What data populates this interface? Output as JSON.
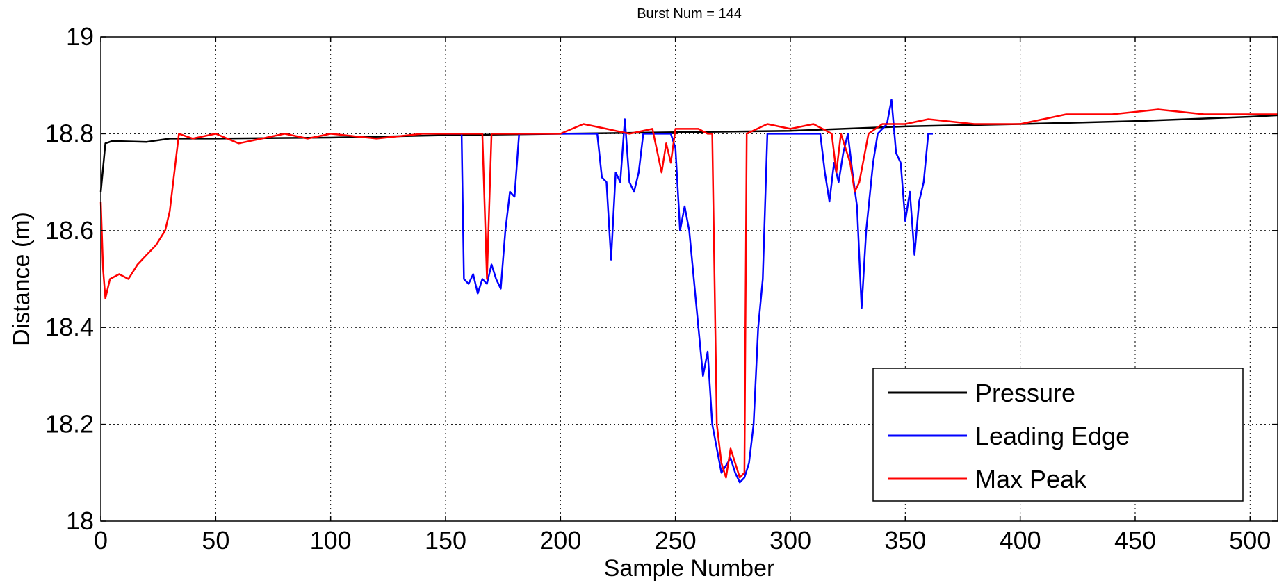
{
  "chart_data": {
    "type": "line",
    "title": "Burst Num = 144",
    "xlabel": "Sample Number",
    "ylabel": "Distance (m)",
    "xlim": [
      0,
      512
    ],
    "ylim": [
      18,
      19
    ],
    "xticks": [
      0,
      50,
      100,
      150,
      200,
      250,
      300,
      350,
      400,
      450,
      500
    ],
    "yticks": [
      18,
      18.2,
      18.4,
      18.6,
      18.8,
      19
    ],
    "xtick_labels": [
      "0",
      "50",
      "100",
      "150",
      "200",
      "250",
      "300",
      "350",
      "400",
      "450",
      "500"
    ],
    "ytick_labels": [
      "18",
      "18.2",
      "18.4",
      "18.6",
      "18.8",
      "19"
    ],
    "grid": true,
    "legend_position": "bottom-right",
    "series": [
      {
        "name": "Pressure",
        "color": "#000000",
        "points": [
          [
            0,
            18.68
          ],
          [
            1,
            18.73
          ],
          [
            2,
            18.78
          ],
          [
            5,
            18.785
          ],
          [
            20,
            18.783
          ],
          [
            30,
            18.79
          ],
          [
            50,
            18.79
          ],
          [
            100,
            18.792
          ],
          [
            150,
            18.797
          ],
          [
            200,
            18.8
          ],
          [
            250,
            18.803
          ],
          [
            300,
            18.806
          ],
          [
            350,
            18.815
          ],
          [
            400,
            18.82
          ],
          [
            450,
            18.826
          ],
          [
            500,
            18.835
          ],
          [
            512,
            18.838
          ]
        ]
      },
      {
        "name": "Leading Edge",
        "color": "#0000ff",
        "points": [
          [
            150,
            18.8
          ],
          [
            157,
            18.8
          ],
          [
            158,
            18.5
          ],
          [
            160,
            18.49
          ],
          [
            162,
            18.51
          ],
          [
            164,
            18.47
          ],
          [
            166,
            18.5
          ],
          [
            168,
            18.49
          ],
          [
            170,
            18.53
          ],
          [
            172,
            18.5
          ],
          [
            174,
            18.48
          ],
          [
            176,
            18.6
          ],
          [
            178,
            18.68
          ],
          [
            180,
            18.67
          ],
          [
            182,
            18.8
          ],
          [
            216,
            18.8
          ],
          [
            218,
            18.71
          ],
          [
            220,
            18.7
          ],
          [
            222,
            18.54
          ],
          [
            224,
            18.72
          ],
          [
            226,
            18.7
          ],
          [
            228,
            18.83
          ],
          [
            230,
            18.7
          ],
          [
            232,
            18.68
          ],
          [
            234,
            18.72
          ],
          [
            236,
            18.8
          ],
          [
            248,
            18.8
          ],
          [
            250,
            18.77
          ],
          [
            252,
            18.6
          ],
          [
            254,
            18.65
          ],
          [
            256,
            18.6
          ],
          [
            258,
            18.5
          ],
          [
            260,
            18.4
          ],
          [
            262,
            18.3
          ],
          [
            264,
            18.35
          ],
          [
            266,
            18.2
          ],
          [
            268,
            18.15
          ],
          [
            270,
            18.1
          ],
          [
            274,
            18.13
          ],
          [
            276,
            18.1
          ],
          [
            278,
            18.08
          ],
          [
            280,
            18.09
          ],
          [
            282,
            18.12
          ],
          [
            284,
            18.2
          ],
          [
            286,
            18.4
          ],
          [
            288,
            18.5
          ],
          [
            290,
            18.8
          ],
          [
            292,
            18.8
          ],
          [
            313,
            18.8
          ],
          [
            315,
            18.72
          ],
          [
            317,
            18.66
          ],
          [
            319,
            18.74
          ],
          [
            321,
            18.7
          ],
          [
            323,
            18.76
          ],
          [
            325,
            18.8
          ],
          [
            327,
            18.72
          ],
          [
            329,
            18.65
          ],
          [
            331,
            18.44
          ],
          [
            333,
            18.6
          ],
          [
            336,
            18.74
          ],
          [
            338,
            18.8
          ],
          [
            342,
            18.82
          ],
          [
            344,
            18.87
          ],
          [
            346,
            18.76
          ],
          [
            348,
            18.74
          ],
          [
            350,
            18.62
          ],
          [
            352,
            18.68
          ],
          [
            354,
            18.55
          ],
          [
            356,
            18.66
          ],
          [
            358,
            18.7
          ],
          [
            360,
            18.8
          ],
          [
            362,
            18.8
          ]
        ]
      },
      {
        "name": "Max Peak",
        "color": "#ff0000",
        "points": [
          [
            0,
            18.66
          ],
          [
            1,
            18.52
          ],
          [
            2,
            18.46
          ],
          [
            4,
            18.5
          ],
          [
            8,
            18.51
          ],
          [
            12,
            18.5
          ],
          [
            16,
            18.53
          ],
          [
            20,
            18.55
          ],
          [
            24,
            18.57
          ],
          [
            28,
            18.6
          ],
          [
            30,
            18.64
          ],
          [
            32,
            18.72
          ],
          [
            34,
            18.8
          ],
          [
            40,
            18.79
          ],
          [
            50,
            18.8
          ],
          [
            60,
            18.78
          ],
          [
            70,
            18.79
          ],
          [
            80,
            18.8
          ],
          [
            90,
            18.79
          ],
          [
            100,
            18.8
          ],
          [
            120,
            18.79
          ],
          [
            140,
            18.8
          ],
          [
            160,
            18.8
          ],
          [
            166,
            18.8
          ],
          [
            168,
            18.5
          ],
          [
            170,
            18.8
          ],
          [
            180,
            18.8
          ],
          [
            200,
            18.8
          ],
          [
            210,
            18.82
          ],
          [
            220,
            18.81
          ],
          [
            230,
            18.8
          ],
          [
            240,
            18.81
          ],
          [
            244,
            18.72
          ],
          [
            246,
            18.78
          ],
          [
            248,
            18.74
          ],
          [
            250,
            18.81
          ],
          [
            260,
            18.81
          ],
          [
            264,
            18.8
          ],
          [
            266,
            18.8
          ],
          [
            268,
            18.2
          ],
          [
            270,
            18.12
          ],
          [
            272,
            18.09
          ],
          [
            274,
            18.15
          ],
          [
            276,
            18.12
          ],
          [
            278,
            18.09
          ],
          [
            280,
            18.1
          ],
          [
            281,
            18.8
          ],
          [
            290,
            18.82
          ],
          [
            300,
            18.81
          ],
          [
            310,
            18.82
          ],
          [
            318,
            18.8
          ],
          [
            320,
            18.72
          ],
          [
            322,
            18.8
          ],
          [
            326,
            18.74
          ],
          [
            328,
            18.68
          ],
          [
            330,
            18.7
          ],
          [
            332,
            18.75
          ],
          [
            334,
            18.8
          ],
          [
            340,
            18.82
          ],
          [
            350,
            18.82
          ],
          [
            360,
            18.83
          ],
          [
            380,
            18.82
          ],
          [
            400,
            18.82
          ],
          [
            410,
            18.83
          ],
          [
            420,
            18.84
          ],
          [
            440,
            18.84
          ],
          [
            460,
            18.85
          ],
          [
            480,
            18.84
          ],
          [
            500,
            18.84
          ],
          [
            512,
            18.84
          ]
        ]
      }
    ]
  }
}
